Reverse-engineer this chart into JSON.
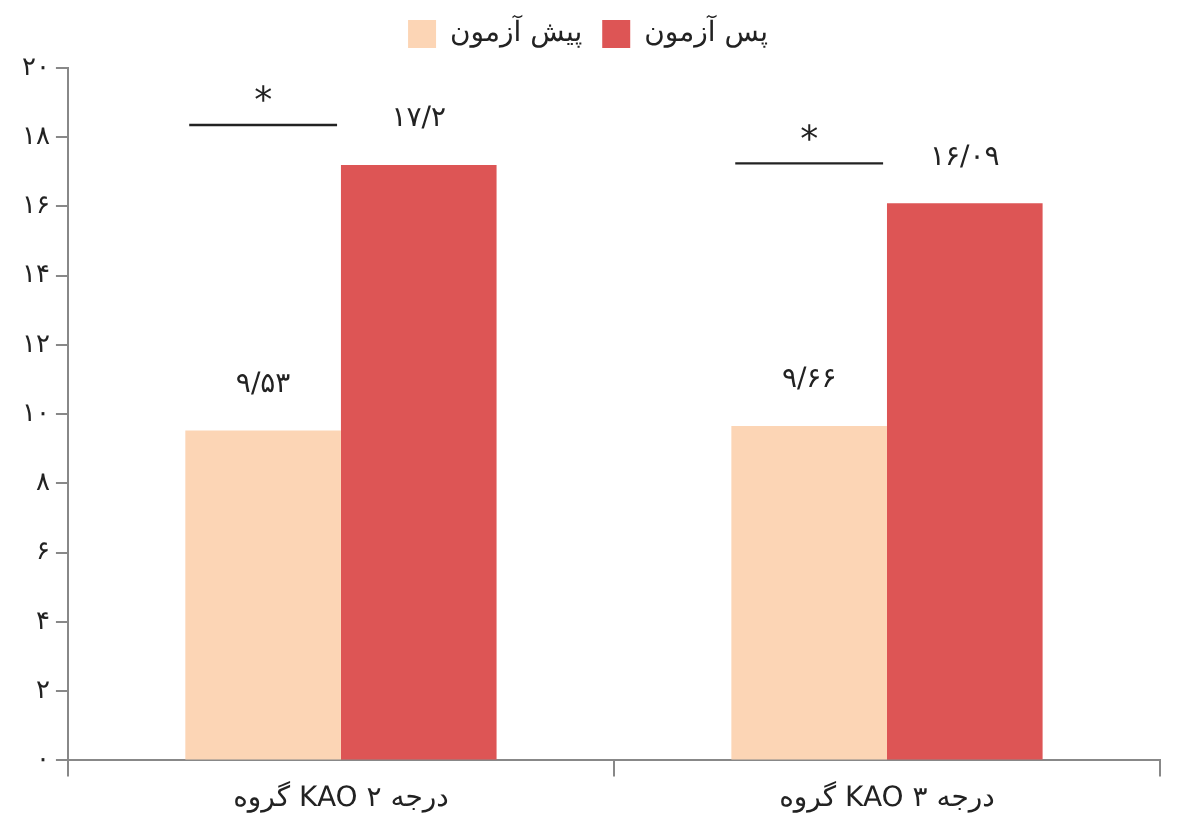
{
  "chart_data": {
    "type": "bar",
    "categories": [
      "گروه KAO درجه ۲",
      "گروه KAO درجه ۳"
    ],
    "series": [
      {
        "name": "پیش آزمون",
        "color": "#fcd5b5",
        "values": [
          9.53,
          9.66
        ],
        "value_labels": [
          "۹/۵۳",
          "۹/۶۶"
        ]
      },
      {
        "name": "پس آزمون",
        "color": "#dd5555",
        "values": [
          17.2,
          16.09
        ],
        "value_labels": [
          "۱۷/۲",
          "۱۶/۰۹"
        ]
      }
    ],
    "ylim": [
      0,
      20
    ],
    "yticks": [
      {
        "value": 0,
        "label": "۰"
      },
      {
        "value": 2,
        "label": "۲"
      },
      {
        "value": 4,
        "label": "۴"
      },
      {
        "value": 6,
        "label": "۶"
      },
      {
        "value": 8,
        "label": "۸"
      },
      {
        "value": 10,
        "label": "۱۰"
      },
      {
        "value": 12,
        "label": "۱۲"
      },
      {
        "value": 14,
        "label": "۱۴"
      },
      {
        "value": 16,
        "label": "۱۶"
      },
      {
        "value": 18,
        "label": "۱۸"
      },
      {
        "value": 20,
        "label": "۲۰"
      }
    ],
    "annotations": [
      "*",
      "*"
    ],
    "grid": false,
    "legend": "top"
  }
}
